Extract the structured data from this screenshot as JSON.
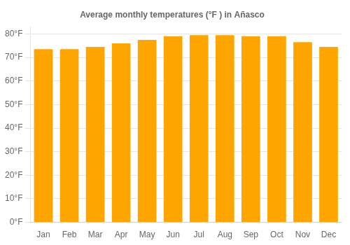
{
  "chart_data": {
    "type": "bar",
    "title": "Average monthly temperatures (°F ) in Añasco",
    "categories": [
      "Jan",
      "Feb",
      "Mar",
      "Apr",
      "May",
      "Jun",
      "Jul",
      "Aug",
      "Sep",
      "Oct",
      "Nov",
      "Dec"
    ],
    "values": [
      73.5,
      73.5,
      74.5,
      76.0,
      77.5,
      79.0,
      79.5,
      79.5,
      79.0,
      79.0,
      76.5,
      74.5
    ],
    "color": "#FFA500",
    "ylim": [
      0,
      83
    ],
    "yticks": [
      {
        "value": 0,
        "label": "0°F"
      },
      {
        "value": 10,
        "label": "10°F"
      },
      {
        "value": 20,
        "label": "20°F"
      },
      {
        "value": 30,
        "label": "30°F"
      },
      {
        "value": 40,
        "label": "40°F"
      },
      {
        "value": 50,
        "label": "50°F"
      },
      {
        "value": 60,
        "label": "60°F"
      },
      {
        "value": 70,
        "label": "70°F"
      },
      {
        "value": 80,
        "label": "80°F"
      }
    ],
    "grid": true
  }
}
